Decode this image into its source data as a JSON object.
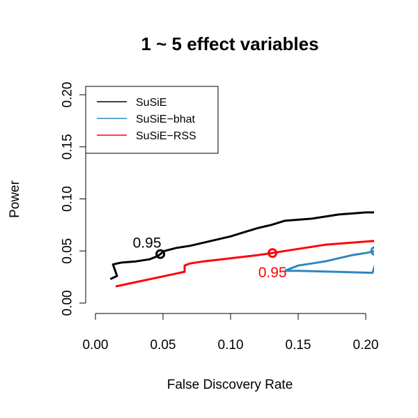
{
  "chart_data": {
    "type": "line",
    "title": "1 ~ 5 effect variables",
    "xlabel": "False Discovery Rate",
    "ylabel": "Power",
    "xlim": [
      0,
      0.2
    ],
    "ylim": [
      0,
      0.2
    ],
    "x_ticks": [
      "0.00",
      "0.05",
      "0.10",
      "0.15",
      "0.20"
    ],
    "y_ticks": [
      "0.00",
      "0.05",
      "0.10",
      "0.15",
      "0.20"
    ],
    "grid": false,
    "legend_position": "top-left",
    "series": [
      {
        "name": "SuSiE",
        "color": "#000000",
        "points": [
          [
            0.011,
            0.023
          ],
          [
            0.016,
            0.026
          ],
          [
            0.013,
            0.037
          ],
          [
            0.016,
            0.038
          ],
          [
            0.02,
            0.039
          ],
          [
            0.03,
            0.04
          ],
          [
            0.04,
            0.042
          ],
          [
            0.046,
            0.045
          ],
          [
            0.048,
            0.047
          ],
          [
            0.051,
            0.05
          ],
          [
            0.06,
            0.053
          ],
          [
            0.07,
            0.055
          ],
          [
            0.08,
            0.058
          ],
          [
            0.09,
            0.061
          ],
          [
            0.1,
            0.064
          ],
          [
            0.11,
            0.068
          ],
          [
            0.12,
            0.072
          ],
          [
            0.13,
            0.075
          ],
          [
            0.14,
            0.079
          ],
          [
            0.15,
            0.08
          ],
          [
            0.16,
            0.081
          ],
          [
            0.17,
            0.083
          ],
          [
            0.18,
            0.085
          ],
          [
            0.19,
            0.086
          ],
          [
            0.2,
            0.087
          ],
          [
            0.21,
            0.087
          ]
        ],
        "marker": {
          "x": 0.048,
          "y": 0.047,
          "label": "0.95"
        }
      },
      {
        "name": "SuSiE−bhat",
        "color": "#2e86c1",
        "points": [
          [
            0.14,
            0.031
          ],
          [
            0.144,
            0.033
          ],
          [
            0.15,
            0.036
          ],
          [
            0.16,
            0.038
          ],
          [
            0.17,
            0.04
          ],
          [
            0.18,
            0.043
          ],
          [
            0.19,
            0.046
          ],
          [
            0.2,
            0.048
          ],
          [
            0.207,
            0.05
          ],
          [
            0.21,
            0.049
          ],
          [
            0.205,
            0.029
          ],
          [
            0.15,
            0.031
          ],
          [
            0.14,
            0.031
          ]
        ],
        "marker": {
          "x": 0.207,
          "y": 0.05,
          "label": ""
        }
      },
      {
        "name": "SuSiE−RSS",
        "color": "#ff0000",
        "points": [
          [
            0.015,
            0.016
          ],
          [
            0.066,
            0.03
          ],
          [
            0.066,
            0.036
          ],
          [
            0.07,
            0.038
          ],
          [
            0.08,
            0.04
          ],
          [
            0.1,
            0.043
          ],
          [
            0.12,
            0.046
          ],
          [
            0.131,
            0.048
          ],
          [
            0.14,
            0.05
          ],
          [
            0.15,
            0.052
          ],
          [
            0.16,
            0.054
          ],
          [
            0.17,
            0.056
          ],
          [
            0.18,
            0.057
          ],
          [
            0.19,
            0.058
          ],
          [
            0.2,
            0.059
          ],
          [
            0.21,
            0.06
          ]
        ],
        "marker": {
          "x": 0.131,
          "y": 0.048,
          "label": "0.95"
        }
      }
    ]
  }
}
